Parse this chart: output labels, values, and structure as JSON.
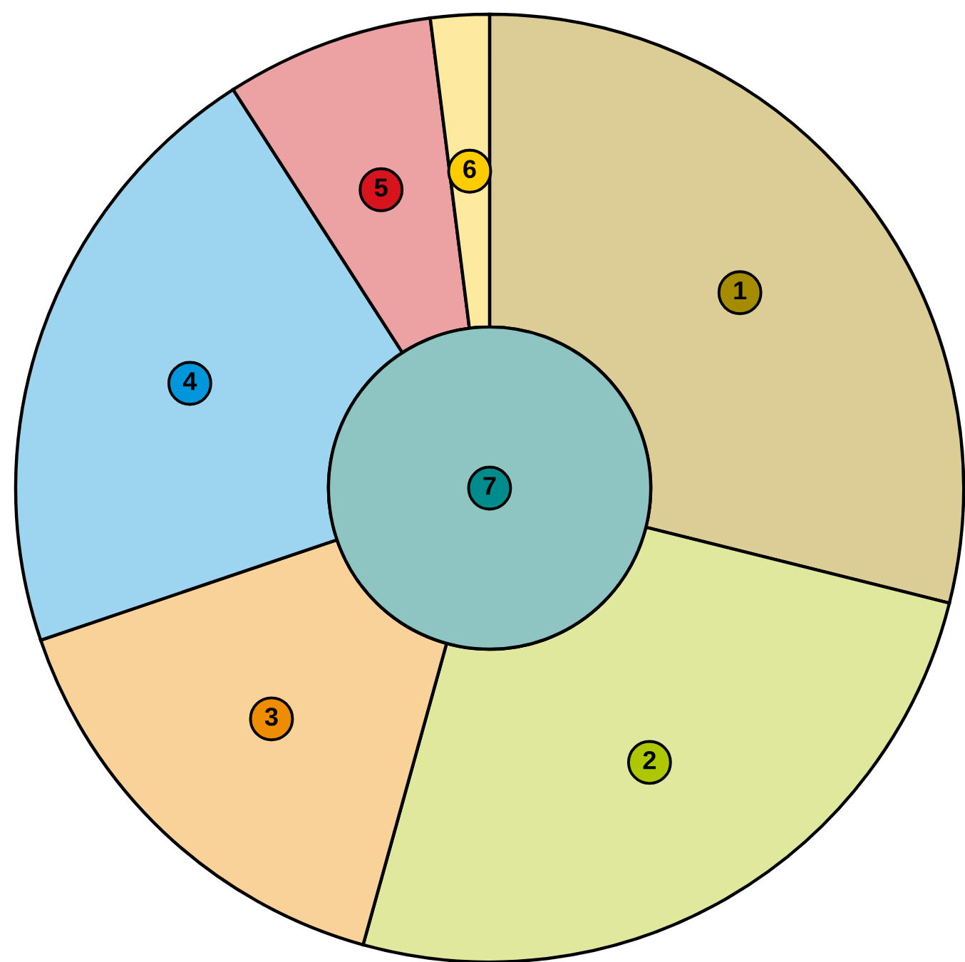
{
  "chart_data": {
    "type": "donut",
    "categories": [
      "1",
      "2",
      "3",
      "4",
      "5",
      "6"
    ],
    "values": [
      28.9,
      25.4,
      15.5,
      21.1,
      7.1,
      2.0
    ],
    "colors": [
      "#dccd96",
      "#dfe89c",
      "#f8d299",
      "#9dd4ef",
      "#eca2a3",
      "#fde9a0"
    ],
    "annotations": [
      "7"
    ],
    "legend": false
  }
}
